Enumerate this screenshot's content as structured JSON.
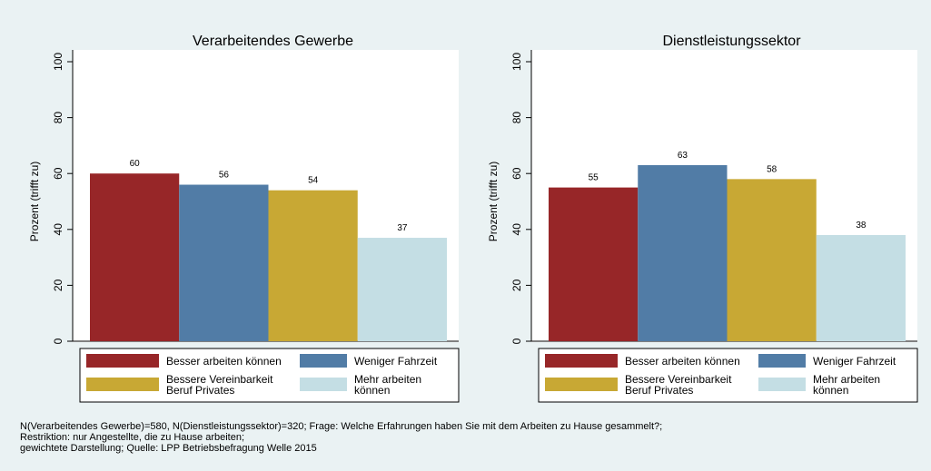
{
  "chart_data": [
    {
      "type": "bar",
      "title": "Verarbeitendes Gewerbe",
      "y_label": "Prozent (trifft zu)",
      "series": [
        {
          "name": "Besser arbeiten können",
          "color": "#972628",
          "values": [
            60
          ]
        },
        {
          "name": "Weniger Fahrzeit",
          "color": "#517ca6",
          "values": [
            56
          ]
        },
        {
          "name": "Bessere Vereinbarkeit\nBeruf Privates",
          "color": "#c8a834",
          "values": [
            54
          ]
        },
        {
          "name": "Mehr arbeiten\nkönnen",
          "color": "#c4dee4",
          "values": [
            37
          ]
        }
      ],
      "ylim": [
        0,
        100
      ],
      "yticks": [
        0,
        20,
        40,
        60,
        80,
        100
      ],
      "legend": "bottom"
    },
    {
      "type": "bar",
      "title": "Dienstleistungssektor",
      "y_label": "Prozent (trifft zu)",
      "series": [
        {
          "name": "Besser arbeiten können",
          "color": "#972628",
          "values": [
            55
          ]
        },
        {
          "name": "Weniger Fahrzeit",
          "color": "#517ca6",
          "values": [
            63
          ]
        },
        {
          "name": "Bessere Vereinbarkeit\nBeruf Privates",
          "color": "#c8a834",
          "values": [
            58
          ]
        },
        {
          "name": "Mehr arbeiten\nkönnen",
          "color": "#c4dee4",
          "values": [
            38
          ]
        }
      ],
      "ylim": [
        0,
        100
      ],
      "yticks": [
        0,
        20,
        40,
        60,
        80,
        100
      ],
      "legend": "bottom"
    }
  ],
  "note": [
    "N(Verarbeitendes Gewerbe)=580, N(Dienstleistungssektor)=320; Frage: Welche Erfahrungen haben Sie mit dem Arbeiten zu Hause gesammelt?;",
    "Restriktion: nur Angestellte, die zu Hause arbeiten;",
    "gewichtete Darstellung; Quelle: LPP Betriebsbefragung Welle 2015"
  ]
}
